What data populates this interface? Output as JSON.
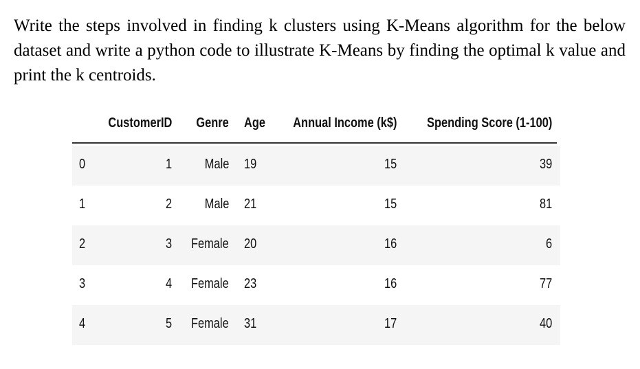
{
  "question": "Write the steps involved in finding k clusters using K-Means algorithm for the below dataset and write a python code to illustrate K-Means by finding the optimal k value and print the k centroids.",
  "table": {
    "columns": [
      "CustomerID",
      "Genre",
      "Age",
      "Annual Income (k$)",
      "Spending Score (1-100)"
    ],
    "rows": [
      {
        "index": 0,
        "cells": [
          1,
          "Male",
          19,
          15,
          39
        ]
      },
      {
        "index": 1,
        "cells": [
          2,
          "Male",
          21,
          15,
          81
        ]
      },
      {
        "index": 2,
        "cells": [
          3,
          "Female",
          20,
          16,
          6
        ]
      },
      {
        "index": 3,
        "cells": [
          4,
          "Female",
          23,
          16,
          77
        ]
      },
      {
        "index": 4,
        "cells": [
          5,
          "Female",
          31,
          17,
          40
        ]
      }
    ]
  }
}
